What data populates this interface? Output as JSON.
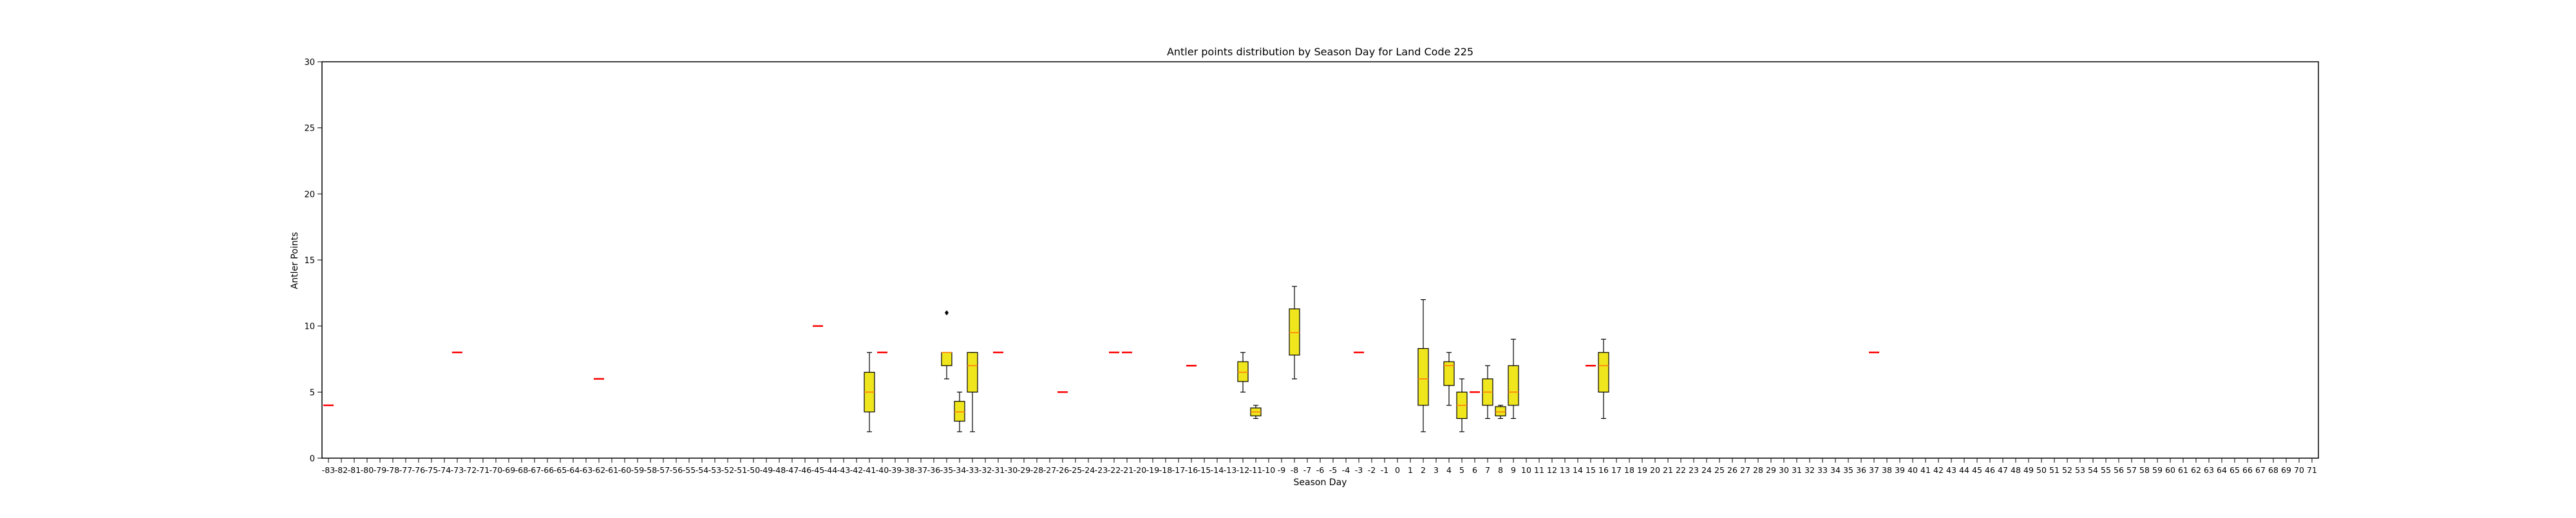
{
  "chart_data": {
    "type": "box",
    "title": "Antler points distribution by Season Day for Land Code 225",
    "xlabel": "Season Day",
    "ylabel": "Antler Points",
    "ylim": [
      0,
      30
    ],
    "yticks": [
      0,
      5,
      10,
      15,
      20,
      25,
      30
    ],
    "x_categories": [
      -83,
      -82,
      -81,
      -80,
      -79,
      -78,
      -77,
      -76,
      -75,
      -74,
      -73,
      -72,
      -71,
      -70,
      -69,
      -68,
      -67,
      -66,
      -65,
      -64,
      -63,
      -62,
      -61,
      -60,
      -59,
      -58,
      -57,
      -56,
      -55,
      -54,
      -53,
      -52,
      -51,
      -50,
      -49,
      -48,
      -47,
      -46,
      -45,
      -44,
      -43,
      -42,
      -41,
      -40,
      -39,
      -38,
      -37,
      -36,
      -35,
      -34,
      -33,
      -32,
      -31,
      -30,
      -29,
      -28,
      -27,
      -26,
      -25,
      -24,
      -23,
      -22,
      -21,
      -20,
      -19,
      -18,
      -17,
      -16,
      -15,
      -14,
      -13,
      -12,
      -11,
      -10,
      -9,
      -8,
      -7,
      -6,
      -5,
      -4,
      -3,
      -2,
      -1,
      0,
      1,
      2,
      3,
      4,
      5,
      6,
      7,
      8,
      9,
      10,
      11,
      12,
      13,
      14,
      15,
      16,
      17,
      18,
      19,
      20,
      21,
      22,
      23,
      24,
      25,
      26,
      27,
      28,
      29,
      30,
      31,
      32,
      33,
      34,
      35,
      36,
      37,
      38,
      39,
      40,
      41,
      42,
      43,
      44,
      45,
      46,
      47,
      48,
      49,
      50,
      51,
      52,
      53,
      54,
      55,
      56,
      57,
      58,
      59,
      60,
      61,
      62,
      63,
      64,
      65,
      66,
      67,
      68,
      69,
      70,
      71
    ],
    "box_color": "#f0e61e",
    "median_color": "#ff7f0e",
    "single_color": "#ff0000",
    "boxes": [
      {
        "x": -83,
        "q1": 4,
        "median": 4,
        "q3": 4,
        "whislo": 4,
        "whishi": 4,
        "fliers": []
      },
      {
        "x": -73,
        "q1": 8,
        "median": 8,
        "q3": 8,
        "whislo": 8,
        "whishi": 8,
        "fliers": []
      },
      {
        "x": -62,
        "q1": 6,
        "median": 6,
        "q3": 6,
        "whislo": 6,
        "whishi": 6,
        "fliers": []
      },
      {
        "x": -45,
        "q1": 10,
        "median": 10,
        "q3": 10,
        "whislo": 10,
        "whishi": 10,
        "fliers": []
      },
      {
        "x": -41,
        "q1": 3.5,
        "median": 5,
        "q3": 6.5,
        "whislo": 2,
        "whishi": 8,
        "fliers": []
      },
      {
        "x": -40,
        "q1": 8,
        "median": 8,
        "q3": 8,
        "whislo": 8,
        "whishi": 8,
        "fliers": []
      },
      {
        "x": -35,
        "q1": 7,
        "median": 8,
        "q3": 8,
        "whislo": 6,
        "whishi": 8,
        "fliers": [
          11
        ]
      },
      {
        "x": -34,
        "q1": 2.8,
        "median": 3.5,
        "q3": 4.3,
        "whislo": 2,
        "whishi": 5,
        "fliers": []
      },
      {
        "x": -33,
        "q1": 5,
        "median": 7,
        "q3": 8,
        "whislo": 2,
        "whishi": 8,
        "fliers": []
      },
      {
        "x": -31,
        "q1": 8,
        "median": 8,
        "q3": 8,
        "whislo": 8,
        "whishi": 8,
        "fliers": []
      },
      {
        "x": -26,
        "q1": 5,
        "median": 5,
        "q3": 5,
        "whislo": 5,
        "whishi": 5,
        "fliers": []
      },
      {
        "x": -22,
        "q1": 8,
        "median": 8,
        "q3": 8,
        "whislo": 8,
        "whishi": 8,
        "fliers": []
      },
      {
        "x": -21,
        "q1": 8,
        "median": 8,
        "q3": 8,
        "whislo": 8,
        "whishi": 8,
        "fliers": []
      },
      {
        "x": -16,
        "q1": 7,
        "median": 7,
        "q3": 7,
        "whislo": 7,
        "whishi": 7,
        "fliers": []
      },
      {
        "x": -12,
        "q1": 5.8,
        "median": 6.5,
        "q3": 7.3,
        "whislo": 5,
        "whishi": 8,
        "fliers": []
      },
      {
        "x": -11,
        "q1": 3.2,
        "median": 3.5,
        "q3": 3.8,
        "whislo": 3,
        "whishi": 4,
        "fliers": []
      },
      {
        "x": -8,
        "q1": 7.8,
        "median": 9.5,
        "q3": 11.3,
        "whislo": 6,
        "whishi": 13,
        "fliers": []
      },
      {
        "x": -3,
        "q1": 8,
        "median": 8,
        "q3": 8,
        "whislo": 8,
        "whishi": 8,
        "fliers": []
      },
      {
        "x": 2,
        "q1": 4,
        "median": 6,
        "q3": 8.3,
        "whislo": 2,
        "whishi": 12,
        "fliers": []
      },
      {
        "x": 4,
        "q1": 5.5,
        "median": 7,
        "q3": 7.3,
        "whislo": 4,
        "whishi": 8,
        "fliers": []
      },
      {
        "x": 5,
        "q1": 3,
        "median": 4,
        "q3": 5,
        "whislo": 2,
        "whishi": 6,
        "fliers": []
      },
      {
        "x": 6,
        "q1": 5,
        "median": 5,
        "q3": 5,
        "whislo": 5,
        "whishi": 5,
        "fliers": []
      },
      {
        "x": 7,
        "q1": 4,
        "median": 5,
        "q3": 6,
        "whislo": 3,
        "whishi": 7,
        "fliers": []
      },
      {
        "x": 8,
        "q1": 3.2,
        "median": 3.5,
        "q3": 3.9,
        "whislo": 3,
        "whishi": 4,
        "fliers": []
      },
      {
        "x": 9,
        "q1": 4,
        "median": 5,
        "q3": 7,
        "whislo": 3,
        "whishi": 9,
        "fliers": []
      },
      {
        "x": 15,
        "q1": 7,
        "median": 7,
        "q3": 7,
        "whislo": 7,
        "whishi": 7,
        "fliers": []
      },
      {
        "x": 16,
        "q1": 5,
        "median": 7,
        "q3": 8,
        "whislo": 3,
        "whishi": 9,
        "fliers": []
      },
      {
        "x": 37,
        "q1": 8,
        "median": 8,
        "q3": 8,
        "whislo": 8,
        "whishi": 8,
        "fliers": []
      }
    ]
  }
}
